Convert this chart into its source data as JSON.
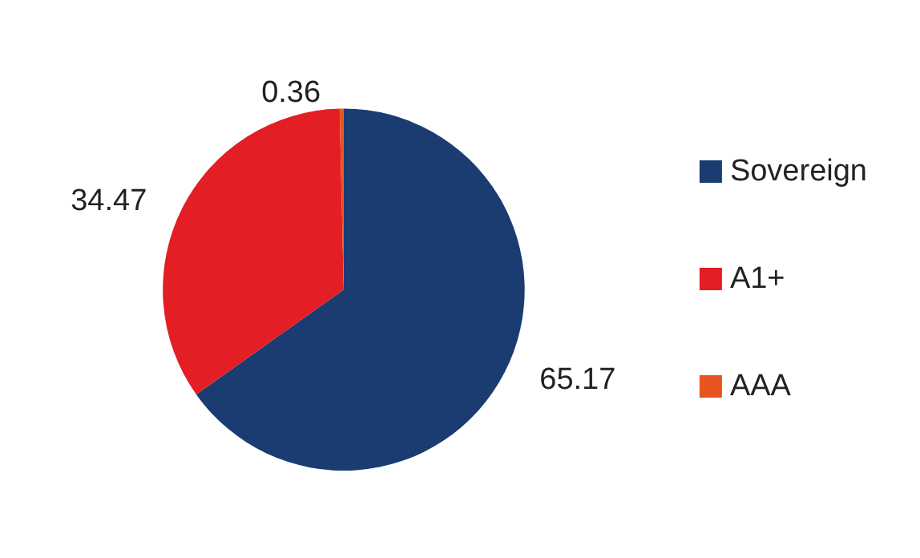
{
  "chart_data": {
    "type": "pie",
    "categories": [
      "Sovereign",
      "A1+",
      "AAA"
    ],
    "values": [
      65.17,
      34.47,
      0.36
    ],
    "colors": [
      "#1a3c70",
      "#e31e24",
      "#e8541e"
    ],
    "data_labels": true,
    "legend": "right"
  }
}
